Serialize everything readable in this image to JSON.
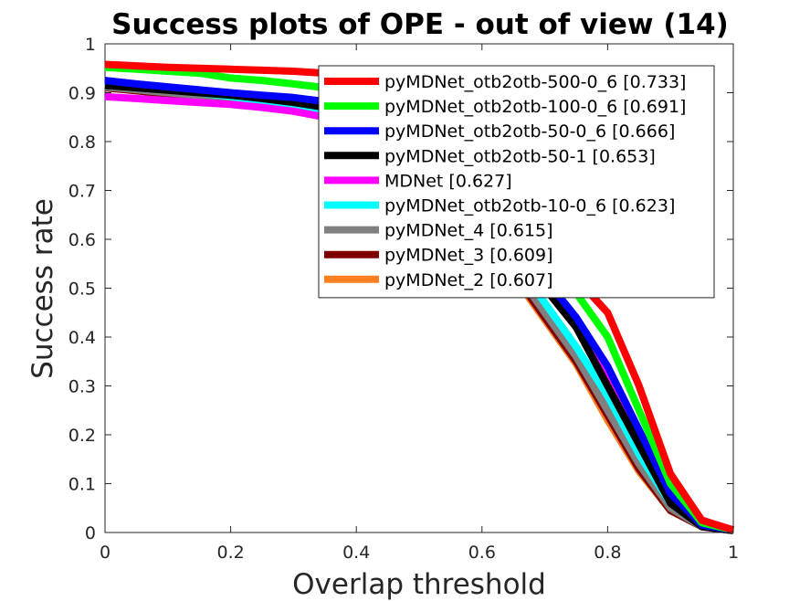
{
  "chart_data": {
    "type": "line",
    "title": "Success plots of OPE - out of view (14)",
    "xlabel": "Overlap threshold",
    "ylabel": "Success rate",
    "xlim": [
      0,
      1
    ],
    "ylim": [
      0,
      1
    ],
    "xticks": [
      "0",
      "0.2",
      "0.4",
      "0.6",
      "0.8",
      "1"
    ],
    "yticks": [
      "0",
      "0.1",
      "0.2",
      "0.3",
      "0.4",
      "0.5",
      "0.6",
      "0.7",
      "0.8",
      "0.9",
      "1"
    ],
    "grid": false,
    "legend_position": "top-right",
    "x": [
      0,
      0.05,
      0.1,
      0.15,
      0.2,
      0.25,
      0.3,
      0.35,
      0.4,
      0.45,
      0.5,
      0.55,
      0.6,
      0.65,
      0.7,
      0.75,
      0.8,
      0.85,
      0.9,
      0.95,
      1
    ],
    "series": [
      {
        "name": "pyMDNet_otb2otb-500-0_6 [0.733]",
        "color": "#ff0000",
        "values": [
          0.958,
          0.955,
          0.952,
          0.95,
          0.948,
          0.946,
          0.944,
          0.94,
          0.935,
          0.925,
          0.9,
          0.86,
          0.8,
          0.72,
          0.62,
          0.52,
          0.45,
          0.3,
          0.12,
          0.025,
          0.005
        ]
      },
      {
        "name": "pyMDNet_otb2otb-100-0_6 [0.691]",
        "color": "#00ff00",
        "values": [
          0.952,
          0.948,
          0.944,
          0.94,
          0.93,
          0.925,
          0.918,
          0.91,
          0.9,
          0.885,
          0.86,
          0.82,
          0.74,
          0.64,
          0.56,
          0.49,
          0.4,
          0.25,
          0.1,
          0.02,
          0.005
        ]
      },
      {
        "name": "pyMDNet_otb2otb-50-0_6 [0.666]",
        "color": "#0000ff",
        "values": [
          0.925,
          0.918,
          0.912,
          0.906,
          0.9,
          0.895,
          0.89,
          0.882,
          0.87,
          0.85,
          0.82,
          0.78,
          0.7,
          0.6,
          0.52,
          0.44,
          0.34,
          0.21,
          0.08,
          0.015,
          0.005
        ]
      },
      {
        "name": "pyMDNet_otb2otb-50-1 [0.653]",
        "color": "#000000",
        "values": [
          0.915,
          0.91,
          0.905,
          0.9,
          0.895,
          0.888,
          0.88,
          0.87,
          0.86,
          0.84,
          0.8,
          0.76,
          0.68,
          0.58,
          0.5,
          0.42,
          0.3,
          0.18,
          0.06,
          0.012,
          0.004
        ]
      },
      {
        "name": "MDNet [0.627]",
        "color": "#ff00ff",
        "values": [
          0.892,
          0.888,
          0.884,
          0.88,
          0.876,
          0.87,
          0.862,
          0.85,
          0.835,
          0.815,
          0.785,
          0.74,
          0.66,
          0.58,
          0.5,
          0.42,
          0.33,
          0.2,
          0.07,
          0.025,
          0.005
        ]
      },
      {
        "name": "pyMDNet_otb2otb-10-0_6 [0.623]",
        "color": "#00ffff",
        "values": [
          0.922,
          0.915,
          0.908,
          0.9,
          0.892,
          0.884,
          0.875,
          0.865,
          0.85,
          0.83,
          0.8,
          0.75,
          0.66,
          0.56,
          0.47,
          0.38,
          0.28,
          0.16,
          0.06,
          0.015,
          0.004
        ]
      },
      {
        "name": "pyMDNet_4 [0.615]",
        "color": "#808080",
        "values": [
          0.912,
          0.906,
          0.9,
          0.894,
          0.888,
          0.88,
          0.87,
          0.858,
          0.843,
          0.82,
          0.79,
          0.74,
          0.64,
          0.54,
          0.45,
          0.36,
          0.25,
          0.14,
          0.05,
          0.012,
          0.004
        ]
      },
      {
        "name": "pyMDNet_3 [0.609]",
        "color": "#800000",
        "values": [
          0.91,
          0.904,
          0.897,
          0.89,
          0.884,
          0.876,
          0.866,
          0.854,
          0.838,
          0.815,
          0.785,
          0.73,
          0.63,
          0.53,
          0.44,
          0.35,
          0.24,
          0.13,
          0.045,
          0.012,
          0.004
        ]
      },
      {
        "name": "pyMDNet_2 [0.607]",
        "color": "#ff8020",
        "values": [
          0.918,
          0.912,
          0.905,
          0.898,
          0.89,
          0.882,
          0.872,
          0.86,
          0.842,
          0.818,
          0.785,
          0.73,
          0.625,
          0.525,
          0.435,
          0.345,
          0.23,
          0.125,
          0.045,
          0.012,
          0.004
        ]
      }
    ]
  }
}
